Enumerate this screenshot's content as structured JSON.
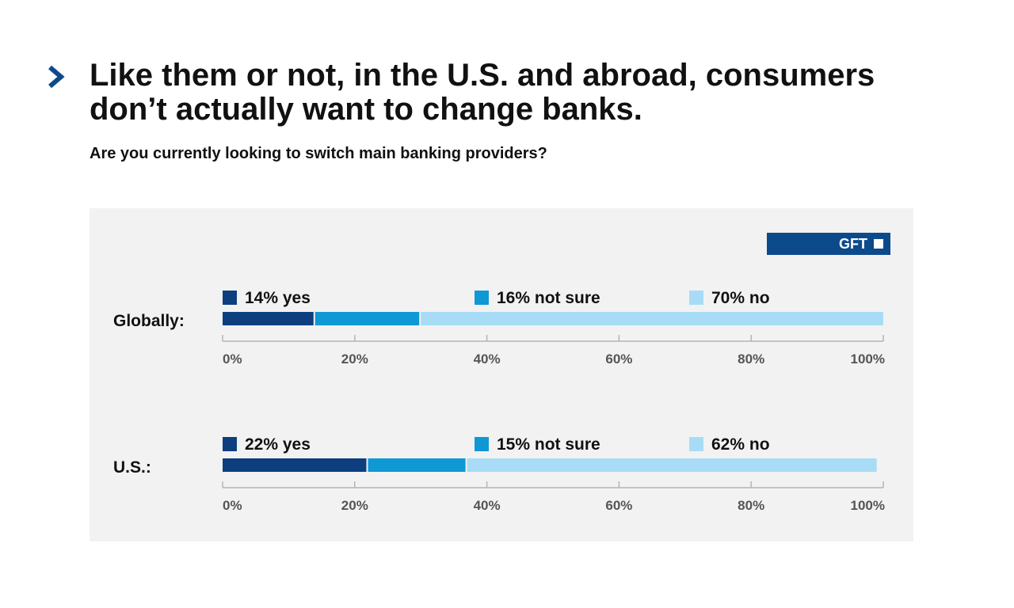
{
  "header": {
    "title": "Like them or not, in the U.S. and abroad, consumers don’t actually want to change banks.",
    "subtitle": "Are you currently looking to switch main banking providers?"
  },
  "brand": {
    "label": "GFT"
  },
  "colors": {
    "yes": "#0d3f7f",
    "not_sure": "#0e98d4",
    "no": "#a8dcf6",
    "axis": "#b5b5b5",
    "panel": "#f2f2f2"
  },
  "chart_data": {
    "type": "bar",
    "orientation": "horizontal-stacked",
    "xlim": [
      0,
      100
    ],
    "x_ticks": [
      "0%",
      "20%",
      "40%",
      "60%",
      "80%",
      "100%"
    ],
    "categories": [
      "Globally:",
      "U.S.:"
    ],
    "series": [
      {
        "name": "yes",
        "values": [
          14,
          22
        ],
        "labels": [
          "14% yes",
          "22% yes"
        ]
      },
      {
        "name": "not sure",
        "values": [
          16,
          15
        ],
        "labels": [
          "16% not sure",
          "15% not sure"
        ]
      },
      {
        "name": "no",
        "values": [
          70,
          62
        ],
        "labels": [
          "70% no",
          "62% no"
        ]
      }
    ]
  }
}
